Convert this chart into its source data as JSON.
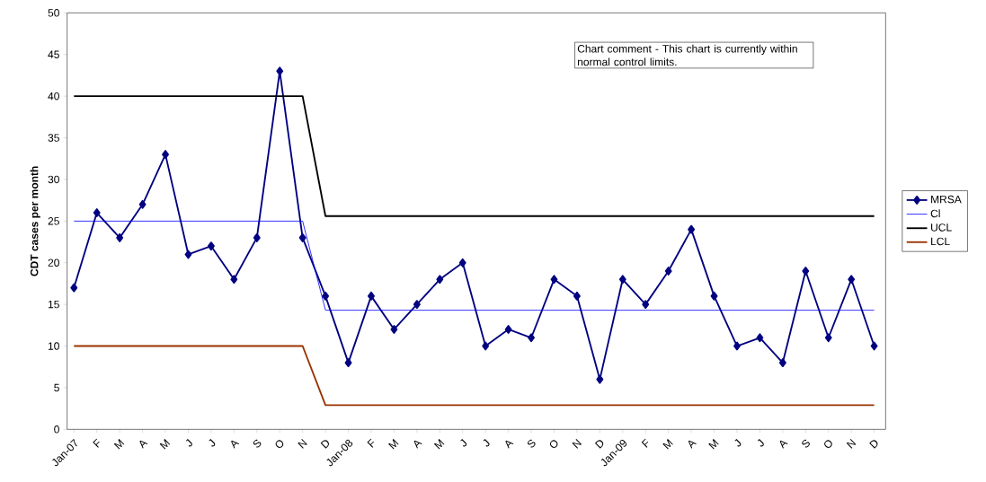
{
  "chart_data": {
    "type": "line",
    "ylabel": "CDT cases per month",
    "categories": [
      "Jan-07",
      "F",
      "M",
      "A",
      "M",
      "J",
      "J",
      "A",
      "S",
      "O",
      "N",
      "D",
      "Jan-08",
      "F",
      "M",
      "A",
      "M",
      "J",
      "J",
      "A",
      "S",
      "O",
      "N",
      "D",
      "Jan-09",
      "F",
      "M",
      "A",
      "M",
      "J",
      "J",
      "A",
      "S",
      "O",
      "N",
      "D"
    ],
    "series": [
      {
        "name": "MRSA",
        "color": "#000080",
        "marker": "diamond",
        "values": [
          17,
          26,
          23,
          27,
          33,
          21,
          22,
          18,
          23,
          43,
          23,
          16,
          8,
          16,
          12,
          15,
          18,
          20,
          10,
          12,
          11,
          18,
          16,
          6,
          18,
          15,
          19,
          24,
          16,
          10,
          11,
          8,
          19,
          11,
          18,
          10
        ]
      },
      {
        "name": "Cl",
        "color": "#0000ff",
        "marker": "none",
        "values": [
          25,
          25,
          25,
          25,
          25,
          25,
          25,
          25,
          25,
          25,
          25,
          14.3,
          14.3,
          14.3,
          14.3,
          14.3,
          14.3,
          14.3,
          14.3,
          14.3,
          14.3,
          14.3,
          14.3,
          14.3,
          14.3,
          14.3,
          14.3,
          14.3,
          14.3,
          14.3,
          14.3,
          14.3,
          14.3,
          14.3,
          14.3,
          14.3
        ]
      },
      {
        "name": "UCL",
        "color": "#000000",
        "marker": "none",
        "values": [
          40,
          40,
          40,
          40,
          40,
          40,
          40,
          40,
          40,
          40,
          40,
          25.6,
          25.6,
          25.6,
          25.6,
          25.6,
          25.6,
          25.6,
          25.6,
          25.6,
          25.6,
          25.6,
          25.6,
          25.6,
          25.6,
          25.6,
          25.6,
          25.6,
          25.6,
          25.6,
          25.6,
          25.6,
          25.6,
          25.6,
          25.6,
          25.6
        ]
      },
      {
        "name": "LCL",
        "color": "#993300",
        "marker": "none",
        "values": [
          10,
          10,
          10,
          10,
          10,
          10,
          10,
          10,
          10,
          10,
          10,
          2.9,
          2.9,
          2.9,
          2.9,
          2.9,
          2.9,
          2.9,
          2.9,
          2.9,
          2.9,
          2.9,
          2.9,
          2.9,
          2.9,
          2.9,
          2.9,
          2.9,
          2.9,
          2.9,
          2.9,
          2.9,
          2.9,
          2.9,
          2.9,
          2.9
        ]
      }
    ],
    "ylim": [
      0,
      50
    ],
    "yticks": [
      0,
      5,
      10,
      15,
      20,
      25,
      30,
      35,
      40,
      45,
      50
    ],
    "grid": false,
    "legend": "right",
    "annotations": [
      "Chart comment - This chart is currently within normal control limits."
    ]
  }
}
